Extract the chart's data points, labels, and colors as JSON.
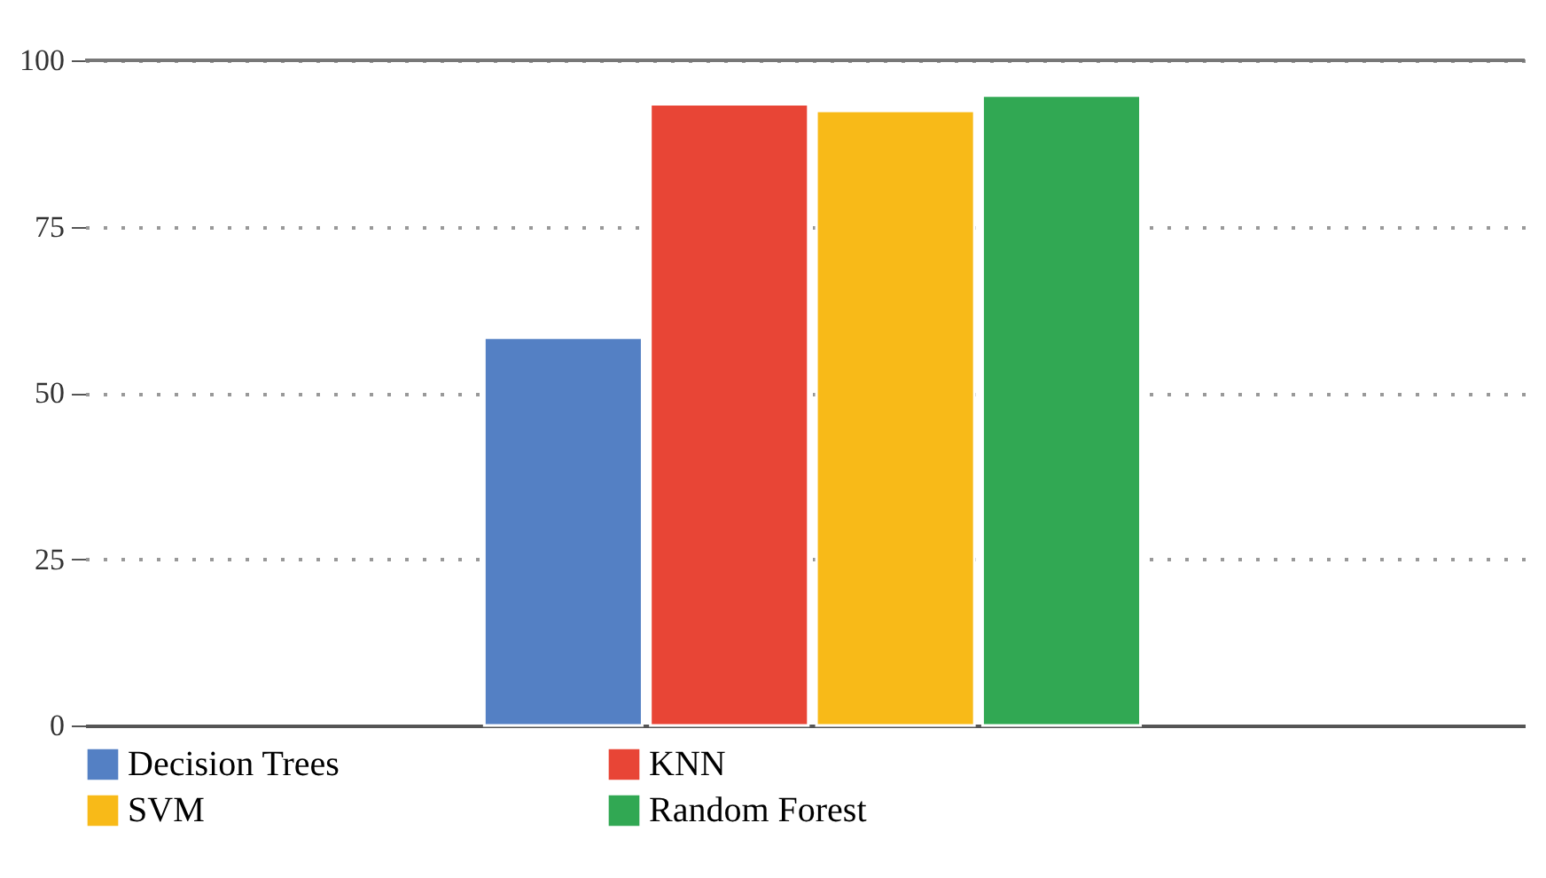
{
  "chart_data": {
    "type": "bar",
    "categories": [
      null
    ],
    "series": [
      {
        "name": "Decision Trees",
        "color": "#5480c4",
        "values": [
          58.3
        ]
      },
      {
        "name": "KNN",
        "color": "#e84536",
        "values": [
          93.4
        ]
      },
      {
        "name": "SVM",
        "color": "#f8ba18",
        "values": [
          92.4
        ]
      },
      {
        "name": "Random Forest",
        "color": "#31a853",
        "values": [
          94.7
        ]
      }
    ],
    "ylim": [
      0,
      100
    ],
    "yticks": [
      0,
      25,
      50,
      75,
      100
    ],
    "grid": "y",
    "legend": "bottom"
  }
}
